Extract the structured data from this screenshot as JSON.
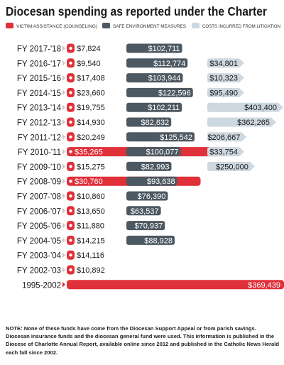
{
  "chart_data": {
    "type": "bar",
    "title": "Diocesan spending as reported under the Charter",
    "legend": [
      {
        "name": "VICTIM ASSISTANCE (COUNSELING)",
        "color": "#e03039"
      },
      {
        "name": "SAFE ENVIRONMENT MEASURES",
        "color": "#4d5962"
      },
      {
        "name": "COSTS INCURRED FROM LITIGATION",
        "color": "#cdd8e0"
      }
    ],
    "legend_position": "top",
    "categories": [
      "FY 2017-'18",
      "FY 2016-'17",
      "FY 2015-'16",
      "FY 2014-'15",
      "FY 2013-'14",
      "FY 2012-'13",
      "FY 2011-'12",
      "FY 2010-'11",
      "FY 2009-'10",
      "FY 2008-'09",
      "FY 2007-'08",
      "FY 2006-'07",
      "FY 2005-'06",
      "FY 2004-'05",
      "FY 2003-'04",
      "FY 2002-'03",
      "1995-2002"
    ],
    "series": [
      {
        "name": "VICTIM ASSISTANCE (COUNSELING)",
        "values": [
          7824,
          9540,
          17408,
          23660,
          19755,
          14930,
          20249,
          35265,
          15275,
          30760,
          10860,
          13650,
          11880,
          14215,
          14116,
          10892,
          369439
        ],
        "labels": [
          "$7,824",
          "$9,540",
          "$17,408",
          "$23,660",
          "$19,755",
          "$14,930",
          "$20,249",
          "$35,265",
          "$15,275",
          "$30,760",
          "$10,860",
          "$13,650",
          "$11,880",
          "$14,215",
          "$14,116",
          "$10,892",
          "$369,439"
        ]
      },
      {
        "name": "SAFE ENVIRONMENT MEASURES",
        "values": [
          102711,
          112774,
          103944,
          122596,
          102211,
          82632,
          125542,
          100077,
          82993,
          93638,
          76390,
          63537,
          70937,
          88928,
          null,
          null,
          null
        ],
        "labels": [
          "$102,711",
          "$112,774",
          "$103,944",
          "$122,596",
          "$102,211",
          "$82,632",
          "$125,542",
          "$100,077",
          "$82,993",
          "$93,638",
          "$76,390",
          "$63,537",
          "$70,937",
          "$88,928",
          null,
          null,
          null
        ]
      },
      {
        "name": "COSTS INCURRED FROM LITIGATION",
        "values": [
          null,
          34801,
          10323,
          95490,
          403400,
          362265,
          206667,
          33754,
          250000,
          null,
          null,
          null,
          null,
          null,
          null,
          null,
          null
        ],
        "labels": [
          null,
          "$34,801",
          "$10,323",
          "$95,490",
          "$403,400",
          "$362,265",
          "$206,667",
          "$33,754",
          "$250,000",
          null,
          null,
          null,
          null,
          null,
          null,
          null,
          null
        ]
      }
    ]
  },
  "note": "NOTE: None of these funds have come from the Diocesan Support Appeal or from parish savings. Diocesan insurance funds and the diocesan general fund were used. This information is published in the Diocese of Charlotte Annual Report, available online since 2012 and published in the Catholic News Herald each fall since 2002."
}
